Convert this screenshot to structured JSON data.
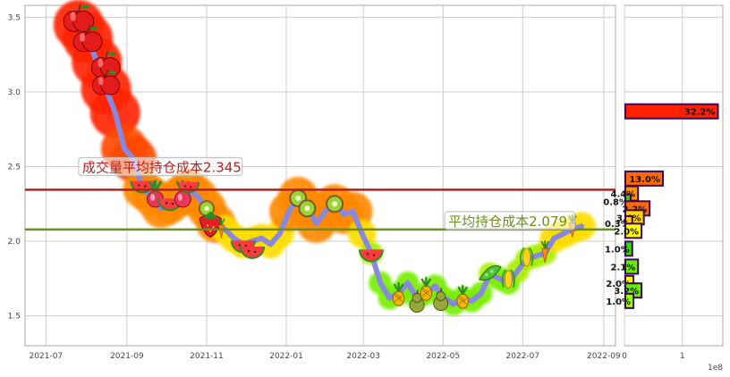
{
  "chart_data": [
    {
      "type": "line",
      "title": "",
      "xlabel": "",
      "ylabel": "",
      "xlim": [
        "2021-06-15",
        "2022-09-10"
      ],
      "ylim": [
        1.3,
        3.58
      ],
      "x_ticks": [
        "2021-07",
        "2021-09",
        "2021-11",
        "2022-01",
        "2022-03",
        "2022-05",
        "2022-07",
        "2022-09"
      ],
      "y_ticks": [
        "1.5",
        "2.0",
        "2.5",
        "3.0",
        "3.5"
      ],
      "grid": true,
      "series": [
        {
          "x": [
            "2021-07-26",
            "2021-08-02",
            "2021-08-09",
            "2021-08-16",
            "2021-08-23",
            "2021-08-30",
            "2021-09-06",
            "2021-09-13",
            "2021-09-20",
            "2021-09-27",
            "2021-10-04",
            "2021-10-11",
            "2021-10-18",
            "2021-10-25",
            "2021-11-01",
            "2021-11-08",
            "2021-11-15",
            "2021-11-22",
            "2021-11-29",
            "2021-12-06",
            "2021-12-13",
            "2021-12-20",
            "2021-12-27",
            "2022-01-03",
            "2022-01-10",
            "2022-01-17",
            "2022-01-24",
            "2022-01-31",
            "2022-02-07",
            "2022-02-14",
            "2022-02-21",
            "2022-02-28",
            "2022-03-07",
            "2022-03-14",
            "2022-03-21",
            "2022-03-28",
            "2022-04-04",
            "2022-04-11",
            "2022-04-18",
            "2022-04-25",
            "2022-05-02",
            "2022-05-09",
            "2022-05-16",
            "2022-05-23",
            "2022-05-30",
            "2022-06-06",
            "2022-06-13",
            "2022-06-20",
            "2022-06-27",
            "2022-07-04",
            "2022-07-11",
            "2022-07-18",
            "2022-07-25",
            "2022-08-01",
            "2022-08-08",
            "2022-08-15"
          ],
          "values": [
            3.45,
            3.36,
            3.2,
            3.02,
            2.86,
            2.62,
            2.55,
            2.35,
            2.3,
            2.22,
            2.25,
            2.3,
            2.35,
            2.3,
            2.22,
            2.12,
            2.08,
            2.02,
            1.98,
            2.0,
            2.02,
            1.98,
            2.05,
            2.2,
            2.3,
            2.22,
            2.12,
            2.2,
            2.25,
            2.18,
            2.2,
            2.05,
            1.92,
            1.72,
            1.62,
            1.65,
            1.72,
            1.62,
            1.65,
            1.7,
            1.62,
            1.58,
            1.62,
            1.6,
            1.65,
            1.78,
            1.75,
            1.72,
            1.8,
            1.88,
            1.9,
            1.92,
            2.02,
            2.05,
            2.08,
            2.1
          ]
        }
      ],
      "reference_lines": [
        {
          "label": "成交量平均持仓成本2.345",
          "value": 2.345,
          "color": "#b22222"
        },
        {
          "label": "平均持仓成本2.079",
          "value": 2.079,
          "color": "#6b8e23"
        }
      ],
      "x_axis_side": {
        "scale_label": "1e8",
        "ticks": [
          "0",
          "1"
        ]
      },
      "volume_profile": {
        "type": "barh",
        "unit_scale": "1e8",
        "xlim": [
          0,
          1.7
        ],
        "bars": [
          {
            "price": 2.87,
            "value": 1.6,
            "percent": "32.2%",
            "color": "#ff2200"
          },
          {
            "price": 2.42,
            "value": 0.65,
            "percent": "13.0%",
            "color": "#ff6a00"
          },
          {
            "price": 2.32,
            "value": 0.22,
            "percent": "4.4%",
            "color": "#ff9500"
          },
          {
            "price": 2.265,
            "value": 0.04,
            "percent": "0.8%",
            "color": "#33cc00"
          },
          {
            "price": 2.22,
            "value": 0.42,
            "percent": "2.2%",
            "color": "#ff6a00"
          },
          {
            "price": 2.16,
            "value": 0.32,
            "percent": "3.6%",
            "color": "#ffd700"
          },
          {
            "price": 2.12,
            "value": 0.12,
            "percent": "0.3%",
            "color": "#ffcc00"
          },
          {
            "price": 2.07,
            "value": 0.28,
            "percent": "2.0%",
            "color": "#ffff00"
          },
          {
            "price": 1.95,
            "value": 0.12,
            "percent": "1.0%",
            "color": "#33dd00"
          },
          {
            "price": 1.83,
            "value": 0.22,
            "percent": "2.1%",
            "color": "#66ee00"
          },
          {
            "price": 1.72,
            "value": 0.14,
            "percent": "2.0%",
            "color": "#ffff00"
          },
          {
            "price": 1.67,
            "value": 0.28,
            "percent": "3.2%",
            "color": "#66ee00"
          },
          {
            "price": 1.6,
            "value": 0.14,
            "percent": "1.0%",
            "color": "#99ff00"
          }
        ]
      }
    }
  ],
  "colors": {
    "line": "#8888dd",
    "grid": "#cccccc",
    "frame": "#aaaaaa",
    "tick_text": "#444444",
    "annotation_box_edge": "#bbbbbb"
  },
  "fruit_icons": [
    "apple-icon",
    "watermelon-icon",
    "radish-icon",
    "strawberry-icon",
    "kiwi-icon",
    "pear-icon",
    "pineapple-icon",
    "pea-pod-icon",
    "carrot-icon",
    "corn-icon"
  ]
}
